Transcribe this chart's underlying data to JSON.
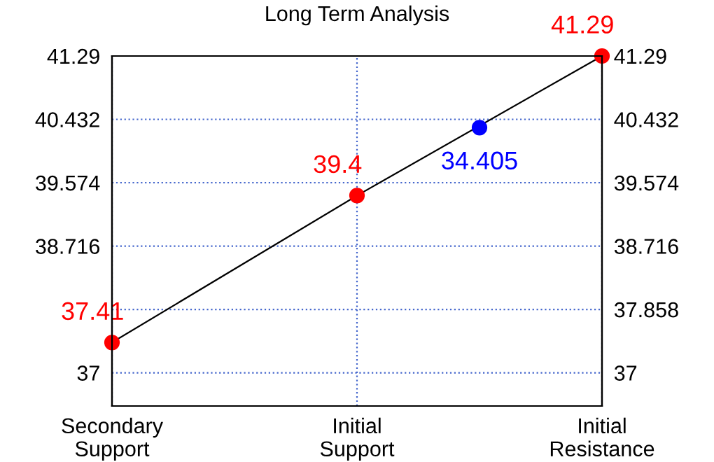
{
  "chart_data": {
    "type": "line",
    "title": "Long Term Analysis",
    "categories": [
      "Secondary\nSupport",
      null,
      "Initial\nSupport",
      null,
      "Initial\nResistance"
    ],
    "series": [
      {
        "color": "#ff0000",
        "values": [
          37.41,
          null,
          39.4,
          null,
          41.29
        ],
        "data_labels": true,
        "marker": "circle"
      },
      {
        "type": "scatter",
        "color": "#0000ff",
        "values": [
          null,
          null,
          null,
          40.32,
          null
        ],
        "marker": "circle"
      }
    ],
    "annotations": [
      {
        "text": "34.405",
        "y": 40.32
      }
    ],
    "ylim": [
      36.55,
      41.29
    ],
    "yticks": [
      37,
      {
        "value": 37.858,
        "label": null
      },
      38.716,
      39.574,
      40.432,
      41.29
    ],
    "y2lim": [
      36.55,
      41.29
    ],
    "y2ticks": [
      37,
      37.858,
      38.716,
      39.574,
      40.432,
      41.29
    ],
    "grid": true
  }
}
